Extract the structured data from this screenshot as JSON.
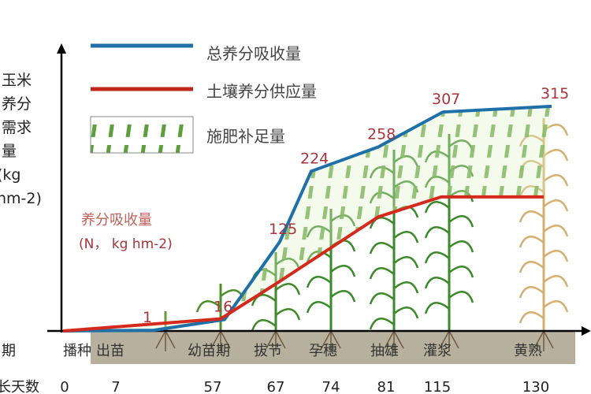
{
  "chart_data": {
    "type": "line",
    "ylabel_lines": [
      "玉米",
      "养分",
      "需求",
      "量",
      "(kg",
      "hm-2)"
    ],
    "annotation_title": "养分吸收量",
    "annotation_unit": "(N， kg hm-2)",
    "row_label_stage": "期",
    "row_label_days": "长天数",
    "stages": [
      "播种",
      "出苗",
      "幼苗期",
      "拔节",
      "孕穗",
      "抽雄",
      "灌浆",
      "黄熟"
    ],
    "days": [
      "0",
      "7",
      "57",
      "67",
      "74",
      "81",
      "115",
      "130"
    ],
    "legend": [
      {
        "label": "总养分吸收量",
        "color": "#1f6fa8",
        "style": "line"
      },
      {
        "label": "土壤养分供应量",
        "color": "#d42a1e",
        "style": "line"
      },
      {
        "label": "施肥补足量",
        "color": "#5a9a3a",
        "style": "hatch"
      }
    ],
    "legend_placement": "top-left",
    "series": [
      {
        "name": "总养分吸收量",
        "values": [
          0,
          1,
          16,
          125,
          224,
          258,
          307,
          315
        ],
        "point_labels": [
          "",
          "1",
          "16",
          "125",
          "224",
          "258",
          "307",
          "315"
        ]
      },
      {
        "name": "土壤养分供应量",
        "values": [
          0,
          17,
          66,
          160,
          188,
          188
        ]
      }
    ],
    "ylim": [
      0,
      330
    ],
    "label_color": "#a8343c",
    "soil_color": "#b8b09e"
  }
}
